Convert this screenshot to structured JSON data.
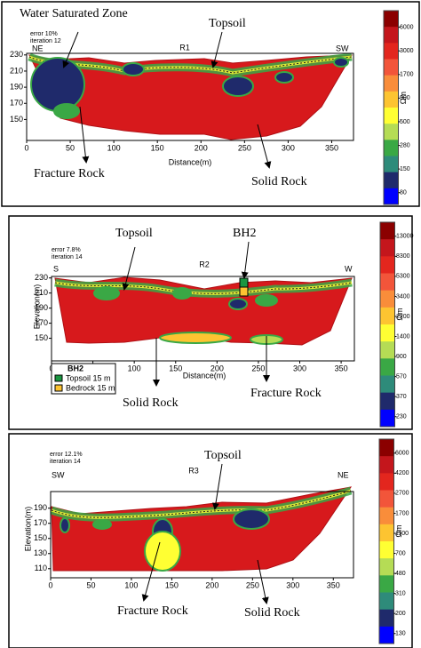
{
  "chart_data": [
    {
      "type": "section",
      "profile": "R1",
      "error": "error 10%",
      "iteration": "iteration 12",
      "start_direction": "NE",
      "end_direction": "SW",
      "xlabel": "Distance(m)",
      "xlim": [
        0,
        375
      ],
      "xticks": [
        0,
        50,
        100,
        150,
        200,
        250,
        300,
        350
      ],
      "ylim": [
        124,
        232
      ],
      "yticks": [
        230,
        210,
        190,
        170,
        150
      ],
      "colorbar": {
        "unit": "Ωm",
        "ticks": [
          6000,
          3000,
          1700,
          900,
          500,
          280,
          150,
          80
        ]
      },
      "annotations": [
        "Water Saturated Zone",
        "Topsoil",
        "Fracture Rock",
        "Solid Rock"
      ]
    },
    {
      "type": "section",
      "profile": "R2",
      "error": "error 7.8%",
      "iteration": "iteration 14",
      "start_direction": "S",
      "end_direction": "W",
      "xlabel": "Distance(m)",
      "ylabel": "Elevation(m)",
      "xlim": [
        0,
        366
      ],
      "xticks": [
        0,
        50,
        100,
        150,
        200,
        250,
        300,
        350
      ],
      "ylim": [
        120,
        232
      ],
      "yticks": [
        230,
        210,
        190,
        170,
        150
      ],
      "colorbar": {
        "unit": "Ωm",
        "ticks": [
          13000,
          8300,
          5300,
          3400,
          2200,
          1400,
          900,
          570,
          370,
          230
        ]
      },
      "legend": {
        "title": "BH2",
        "items": [
          "Topsoil 15 m",
          "Bedrock 15 m"
        ]
      },
      "annotations": [
        "Topsoil",
        "BH2",
        "Solid Rock",
        "Fracture Rock"
      ]
    },
    {
      "type": "section",
      "profile": "R3",
      "error": "error 12.1%",
      "iteration": "iteration 14",
      "start_direction": "SW",
      "end_direction": "NE",
      "ylabel": "Elevation(m)",
      "xlim": [
        0,
        375
      ],
      "xticks": [
        0,
        50,
        100,
        150,
        200,
        250,
        300,
        350
      ],
      "ylim": [
        98,
        212
      ],
      "yticks": [
        190,
        170,
        150,
        130,
        110
      ],
      "colorbar": {
        "unit": "Ωm",
        "ticks": [
          6000,
          4200,
          2700,
          1700,
          1100,
          700,
          480,
          310,
          200,
          130
        ]
      },
      "annotations": [
        "Topsoil",
        "Fracture Rock",
        "Solid Rock"
      ]
    }
  ]
}
